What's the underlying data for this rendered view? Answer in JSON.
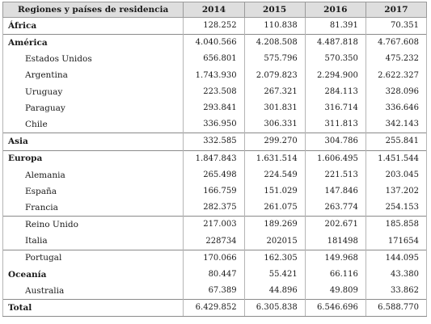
{
  "table": {
    "headers": [
      "Regiones y países de residencia",
      "2014",
      "2015",
      "2016",
      "2017"
    ],
    "rows": [
      {
        "name": "África",
        "level": "region",
        "values": [
          "128.252",
          "110.838",
          "81.391",
          "70.351"
        ],
        "sep": true
      },
      {
        "name": "América",
        "level": "region",
        "values": [
          "4.040.566",
          "4.208.508",
          "4.487.818",
          "4.767.608"
        ],
        "sep": true
      },
      {
        "name": "Estados Unidos",
        "level": "country",
        "values": [
          "656.801",
          "575.796",
          "570.350",
          "475.232"
        ],
        "sep": false
      },
      {
        "name": "Argentina",
        "level": "country",
        "values": [
          "1.743.930",
          "2.079.823",
          "2.294.900",
          "2.622.327"
        ],
        "sep": false
      },
      {
        "name": "Uruguay",
        "level": "country",
        "values": [
          "223.508",
          "267.321",
          "284.113",
          "328.096"
        ],
        "sep": false
      },
      {
        "name": "Paraguay",
        "level": "country",
        "values": [
          "293.841",
          "301.831",
          "316.714",
          "336.646"
        ],
        "sep": false
      },
      {
        "name": "Chile",
        "level": "country",
        "values": [
          "336.950",
          "306.331",
          "311.813",
          "342.143"
        ],
        "sep": false
      },
      {
        "name": "Asia",
        "level": "region",
        "values": [
          "332.585",
          "299.270",
          "304.786",
          "255.841"
        ],
        "sep": true
      },
      {
        "name": "Europa",
        "level": "region",
        "values": [
          "1.847.843",
          "1.631.514",
          "1.606.495",
          "1.451.544"
        ],
        "sep": true
      },
      {
        "name": "Alemania",
        "level": "country",
        "values": [
          "265.498",
          "224.549",
          "221.513",
          "203.045"
        ],
        "sep": false
      },
      {
        "name": "España",
        "level": "country",
        "values": [
          "166.759",
          "151.029",
          "147.846",
          "137.202"
        ],
        "sep": false
      },
      {
        "name": "Francia",
        "level": "country",
        "values": [
          "282.375",
          "261.075",
          "263.774",
          "254.153"
        ],
        "sep": false
      },
      {
        "name": "Reino Unido",
        "level": "country",
        "values": [
          "217.003",
          "189.269",
          "202.671",
          "185.858"
        ],
        "sep": true
      },
      {
        "name": "Italia",
        "level": "country",
        "values": [
          "228734",
          "202015",
          "181498",
          "171654"
        ],
        "sep": false
      },
      {
        "name": "Portugal",
        "level": "country",
        "values": [
          "170.066",
          "162.305",
          "149.968",
          "144.095"
        ],
        "sep": true
      },
      {
        "name": "Oceanía",
        "level": "region",
        "values": [
          "80.447",
          "55.421",
          "66.116",
          "43.380"
        ],
        "sep": false
      },
      {
        "name": "Australia",
        "level": "country",
        "values": [
          "67.389",
          "44.896",
          "49.809",
          "33.862"
        ],
        "sep": false
      },
      {
        "name": "Total",
        "level": "region",
        "values": [
          "6.429.852",
          "6.305.838",
          "6.546.696",
          "6.588.770"
        ],
        "sep": true
      }
    ]
  }
}
